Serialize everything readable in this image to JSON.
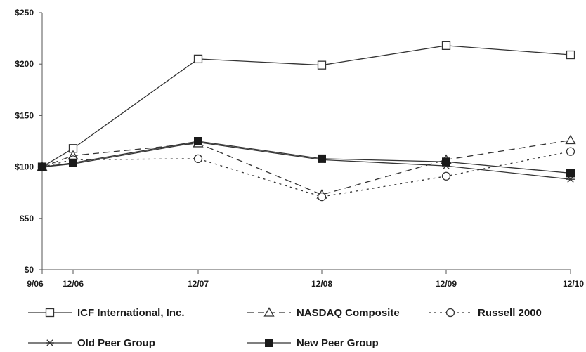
{
  "chart_data": {
    "type": "line",
    "title": "",
    "xlabel": "",
    "ylabel": "",
    "categories": [
      "9/06",
      "12/06",
      "12/07",
      "12/08",
      "12/09",
      "12/10"
    ],
    "y_ticks": [
      "$250",
      "$200",
      "$150",
      "$100",
      "$50",
      "$0"
    ],
    "y_tick_values": [
      250,
      200,
      150,
      100,
      50,
      0
    ],
    "ylim": [
      0,
      250
    ],
    "grid": false,
    "legend_position": "bottom",
    "series": [
      {
        "name": "ICF International, Inc.",
        "values": [
          100,
          118,
          205,
          199,
          218,
          209
        ],
        "marker": "square-open",
        "dash": "solid",
        "color": "#333333"
      },
      {
        "name": "NASDAQ Composite",
        "values": [
          100,
          111,
          123,
          73,
          107,
          126
        ],
        "marker": "triangle-open",
        "dash": "dashed",
        "color": "#333333"
      },
      {
        "name": "Russell 2000",
        "values": [
          100,
          107,
          108,
          71,
          91,
          115
        ],
        "marker": "circle-open",
        "dash": "dotted",
        "color": "#333333"
      },
      {
        "name": "Old Peer Group",
        "values": [
          100,
          103,
          124,
          107,
          101,
          88
        ],
        "marker": "asterisk",
        "dash": "solid",
        "color": "#333333"
      },
      {
        "name": "New Peer Group",
        "values": [
          100,
          104,
          125,
          108,
          105,
          94
        ],
        "marker": "square-filled",
        "dash": "solid",
        "color": "#333333"
      }
    ]
  }
}
